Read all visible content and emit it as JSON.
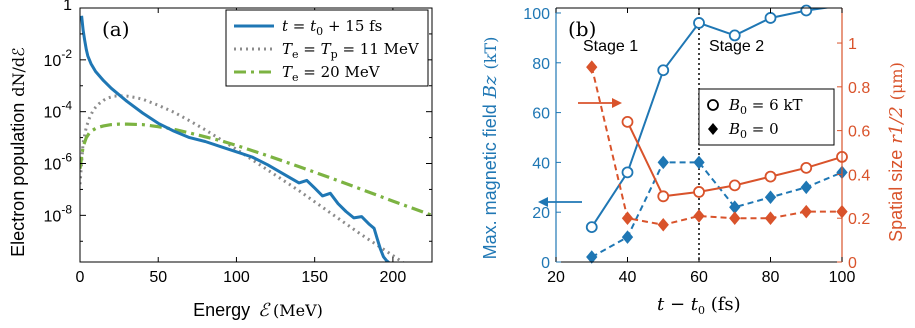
{
  "chart_data": [
    {
      "type": "line",
      "panel_label": "(a)",
      "xlabel": "Energy",
      "xlabel_symbol": "ℰ",
      "xlabel_unit": "(MeV)",
      "ylabel": "Electron population",
      "ylabel_unit": "dN/dℰ",
      "xlim": [
        0,
        225
      ],
      "ylim_log10": [
        -9.8,
        0
      ],
      "y_scale": "log",
      "grid": false,
      "legend_position": "top-right",
      "x_ticks": [
        {
          "value": 0,
          "label": "0"
        },
        {
          "value": 50,
          "label": "50"
        },
        {
          "value": 100,
          "label": "100"
        },
        {
          "value": 150,
          "label": "150"
        },
        {
          "value": 200,
          "label": "200"
        }
      ],
      "y_ticks": [
        {
          "exp": 0,
          "label": "1",
          "sup": ""
        },
        {
          "exp": -2,
          "label": "10",
          "sup": "-2"
        },
        {
          "exp": -4,
          "label": "10",
          "sup": "-4"
        },
        {
          "exp": -6,
          "label": "10",
          "sup": "-6"
        },
        {
          "exp": -8,
          "label": "10",
          "sup": "-8"
        }
      ],
      "series": [
        {
          "name": "t = t0 + 15 fs",
          "legend_parts": [
            "t",
            " = ",
            "t",
            "0",
            " + 15 fs"
          ],
          "color": "#1f77b4",
          "style": "solid",
          "x": [
            1,
            2,
            3,
            4,
            5,
            7,
            10,
            15,
            20,
            30,
            40,
            50,
            60,
            70,
            80,
            90,
            100,
            110,
            120,
            130,
            140,
            145,
            150,
            155,
            160,
            165,
            170,
            175,
            180,
            185,
            188,
            190,
            192,
            194,
            196,
            198
          ],
          "log10_y": [
            -0.3,
            -0.85,
            -1.25,
            -1.6,
            -1.85,
            -2.15,
            -2.45,
            -2.8,
            -3.1,
            -3.6,
            -4.05,
            -4.45,
            -4.75,
            -5.0,
            -5.15,
            -5.35,
            -5.55,
            -5.75,
            -6.05,
            -6.4,
            -6.75,
            -6.65,
            -6.95,
            -7.25,
            -7.15,
            -7.55,
            -7.85,
            -8.1,
            -8.05,
            -8.35,
            -8.5,
            -8.9,
            -9.3,
            -9.6,
            -9.75,
            -9.85
          ]
        },
        {
          "name": "Te = Tp = 11 MeV",
          "legend_parts": [
            "T",
            "e",
            " = ",
            "T",
            "p",
            " = 11 MeV"
          ],
          "color": "#8c8c8c",
          "style": "dotted",
          "x": [
            0,
            2,
            4,
            6,
            8,
            10,
            12,
            15,
            18,
            22,
            26,
            30,
            35,
            40,
            50,
            60,
            70,
            80,
            100,
            120,
            140,
            160,
            180,
            200,
            225
          ],
          "log10_y": [
            -6.8,
            -5.2,
            -4.6,
            -4.25,
            -4.0,
            -3.83,
            -3.7,
            -3.56,
            -3.47,
            -3.4,
            -3.39,
            -3.4,
            -3.45,
            -3.52,
            -3.75,
            -4.02,
            -4.35,
            -4.7,
            -5.45,
            -6.25,
            -7.05,
            -7.9,
            -8.75,
            -9.55,
            -10.6
          ]
        },
        {
          "name": "Te = 20 MeV",
          "legend_parts": [
            "T",
            "e",
            " = 20 MeV"
          ],
          "color": "#7cb342",
          "style": "dashdot",
          "x": [
            0,
            2,
            4,
            6,
            8,
            10,
            12,
            15,
            20,
            25,
            30,
            40,
            50,
            60,
            70,
            80,
            90,
            100,
            120,
            140,
            160,
            180,
            200,
            225
          ],
          "log10_y": [
            -6.2,
            -5.35,
            -5.0,
            -4.82,
            -4.72,
            -4.65,
            -4.6,
            -4.55,
            -4.5,
            -4.48,
            -4.48,
            -4.5,
            -4.58,
            -4.68,
            -4.82,
            -4.97,
            -5.12,
            -5.3,
            -5.7,
            -6.12,
            -6.55,
            -7.0,
            -7.45,
            -8.0
          ]
        }
      ]
    },
    {
      "type": "line",
      "panel_label": "(b)",
      "xlabel": "t − t0 (fs)",
      "xlabel_parts": [
        "t",
        " − ",
        "t",
        "0",
        " (fs)"
      ],
      "ylabel_left": "Max. magnetic field",
      "ylabel_left_symbol": "Bz",
      "ylabel_left_unit": "(kT)",
      "ylabel_right": "Spatial size",
      "ylabel_right_symbol": "r1/2",
      "ylabel_right_unit": "(μm)",
      "xlim": [
        20,
        100
      ],
      "ylim_left": [
        0,
        102
      ],
      "ylim_right": [
        0,
        1.16
      ],
      "grid": false,
      "legend_position": "center-right",
      "x_ticks": [
        20,
        40,
        60,
        80,
        100
      ],
      "y_left_ticks": [
        0,
        20,
        40,
        60,
        80,
        100
      ],
      "y_right_ticks": [
        0,
        0.2,
        0.4,
        0.6,
        0.8,
        1
      ],
      "annotations": {
        "stage1": "Stage 1",
        "stage2": "Stage 2",
        "divider_x": 60
      },
      "legend_entries": [
        {
          "marker": "circle",
          "parts": [
            "B",
            "0",
            " = 6 kT"
          ]
        },
        {
          "marker": "diamond",
          "parts": [
            "B",
            "0",
            " = 0"
          ]
        }
      ],
      "colors": {
        "left": "#1f77b4",
        "right": "#d9532b"
      },
      "series": [
        {
          "name": "B0 = 6 kT",
          "axis": "left",
          "marker": "circle",
          "style": "solid",
          "x": [
            30,
            40,
            50,
            60,
            70,
            80,
            90,
            100
          ],
          "y": [
            14,
            36,
            77,
            96,
            91,
            98,
            101,
            103
          ]
        },
        {
          "name": "B0 = 0",
          "axis": "left",
          "marker": "diamond",
          "style": "dashed",
          "x": [
            30,
            40,
            50,
            60,
            70,
            80,
            90,
            100
          ],
          "y": [
            2,
            10,
            40,
            40,
            22,
            26,
            30,
            36
          ]
        },
        {
          "name": "B0 = 6 kT",
          "axis": "right",
          "marker": "circle",
          "style": "solid",
          "x": [
            40,
            50,
            60,
            70,
            80,
            90,
            100
          ],
          "y": [
            0.64,
            0.3,
            0.32,
            0.35,
            0.39,
            0.43,
            0.48
          ]
        },
        {
          "name": "B0 = 0",
          "axis": "right",
          "marker": "diamond",
          "style": "dashed",
          "x": [
            30,
            40,
            50,
            60,
            70,
            80,
            90,
            100
          ],
          "y": [
            0.89,
            0.2,
            0.17,
            0.21,
            0.2,
            0.2,
            0.23,
            0.23
          ]
        }
      ]
    }
  ]
}
